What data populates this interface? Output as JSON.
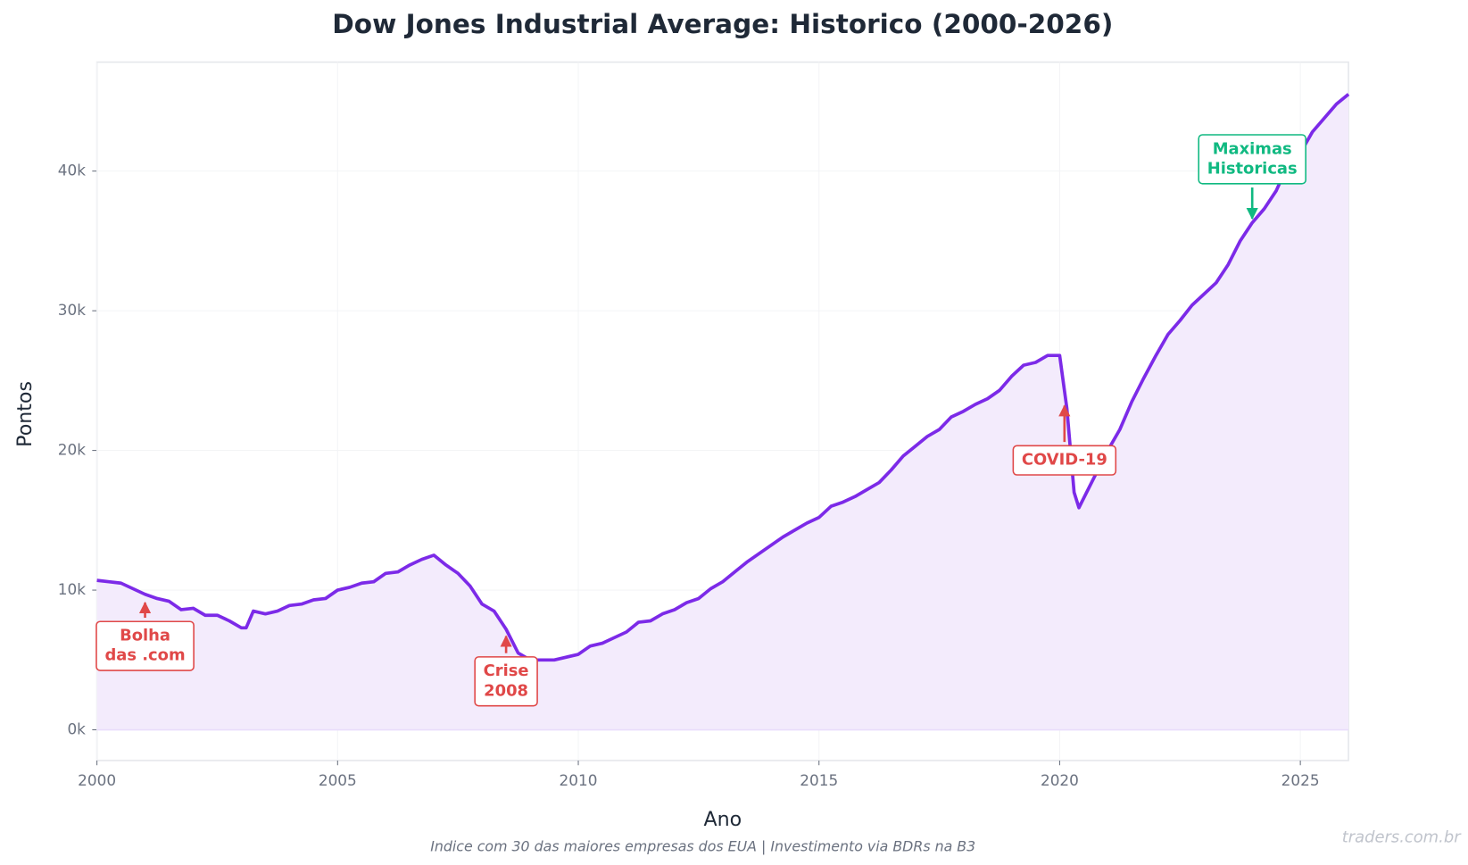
{
  "chart_data": {
    "type": "area-line",
    "title": "Dow Jones Industrial Average: Historico (2000-2026)",
    "xlabel": "Ano",
    "ylabel": "Pontos",
    "footnote": "Indice com 30 das maiores empresas dos EUA | Investimento via BDRs na B3",
    "watermark": "traders.com.br",
    "xlim": [
      2000,
      2026
    ],
    "xticks": [
      2000,
      2005,
      2010,
      2015,
      2020,
      2025
    ],
    "ylim": [
      -2200,
      47800
    ],
    "yticks": [
      {
        "value": 0,
        "label": "0k"
      },
      {
        "value": 10000,
        "label": "10k"
      },
      {
        "value": 20000,
        "label": "20k"
      },
      {
        "value": 30000,
        "label": "30k"
      },
      {
        "value": 40000,
        "label": "40k"
      }
    ],
    "grid": true,
    "series": [
      {
        "name": "Dow Jones",
        "color": "#7c2ae8",
        "fill": "#f3ebfc",
        "x": [
          2000.0,
          2000.25,
          2000.5,
          2000.75,
          2001.0,
          2001.25,
          2001.5,
          2001.75,
          2002.0,
          2002.25,
          2002.5,
          2002.75,
          2003.0,
          2003.1,
          2003.25,
          2003.5,
          2003.75,
          2004.0,
          2004.25,
          2004.5,
          2004.75,
          2005.0,
          2005.25,
          2005.5,
          2005.75,
          2006.0,
          2006.25,
          2006.5,
          2006.75,
          2007.0,
          2007.25,
          2007.5,
          2007.75,
          2008.0,
          2008.25,
          2008.5,
          2008.75,
          2009.0,
          2009.25,
          2009.5,
          2009.75,
          2010.0,
          2010.25,
          2010.5,
          2010.75,
          2011.0,
          2011.25,
          2011.5,
          2011.75,
          2012.0,
          2012.25,
          2012.5,
          2012.75,
          2013.0,
          2013.25,
          2013.5,
          2013.75,
          2014.0,
          2014.25,
          2014.5,
          2014.75,
          2015.0,
          2015.25,
          2015.5,
          2015.75,
          2016.0,
          2016.25,
          2016.5,
          2016.75,
          2017.0,
          2017.25,
          2017.5,
          2017.75,
          2018.0,
          2018.25,
          2018.5,
          2018.75,
          2019.0,
          2019.25,
          2019.5,
          2019.75,
          2020.0,
          2020.15,
          2020.3,
          2020.4,
          2020.75,
          2021.0,
          2021.25,
          2021.5,
          2021.75,
          2022.0,
          2022.25,
          2022.5,
          2022.75,
          2023.0,
          2023.25,
          2023.5,
          2023.75,
          2024.0,
          2024.25,
          2024.5,
          2024.75,
          2025.0,
          2025.25,
          2025.5,
          2025.75,
          2026.0
        ],
        "values": [
          10700,
          10600,
          10500,
          10100,
          9700,
          9400,
          9200,
          8600,
          8700,
          8200,
          8200,
          7800,
          7300,
          7300,
          8500,
          8300,
          8500,
          8900,
          9000,
          9300,
          9400,
          10000,
          10200,
          10500,
          10600,
          11200,
          11300,
          11800,
          12200,
          12500,
          11800,
          11200,
          10300,
          9000,
          8500,
          7200,
          5500,
          5000,
          5000,
          5000,
          5200,
          5400,
          6000,
          6200,
          6600,
          7000,
          7700,
          7800,
          8300,
          8600,
          9100,
          9400,
          10100,
          10600,
          11300,
          12000,
          12600,
          13200,
          13800,
          14300,
          14800,
          15200,
          16000,
          16300,
          16700,
          17200,
          17700,
          18600,
          19600,
          20300,
          21000,
          21500,
          22400,
          22800,
          23300,
          23700,
          24300,
          25300,
          26100,
          26300,
          26800,
          26800,
          23000,
          17000,
          15900,
          18300,
          20000,
          21500,
          23500,
          25200,
          26800,
          28300,
          29300,
          30400,
          31200,
          32000,
          33300,
          35000,
          36300,
          37300,
          38600,
          40500,
          41300,
          42800,
          43800,
          44800,
          45500
        ]
      }
    ],
    "annotations": [
      {
        "text": [
          "Bolha",
          "das .com"
        ],
        "x": 2001.0,
        "y": 9100,
        "color": "#e04848"
      },
      {
        "text": [
          "Crise",
          "2008"
        ],
        "x": 2008.5,
        "y": 6700,
        "color": "#e04848"
      },
      {
        "text": [
          "COVID-19"
        ],
        "x": 2020.1,
        "y": 23200,
        "color": "#e04848"
      },
      {
        "text": [
          "Maximas",
          "Historicas"
        ],
        "x": 2024.0,
        "y": 36600,
        "color": "#10b981"
      }
    ]
  }
}
